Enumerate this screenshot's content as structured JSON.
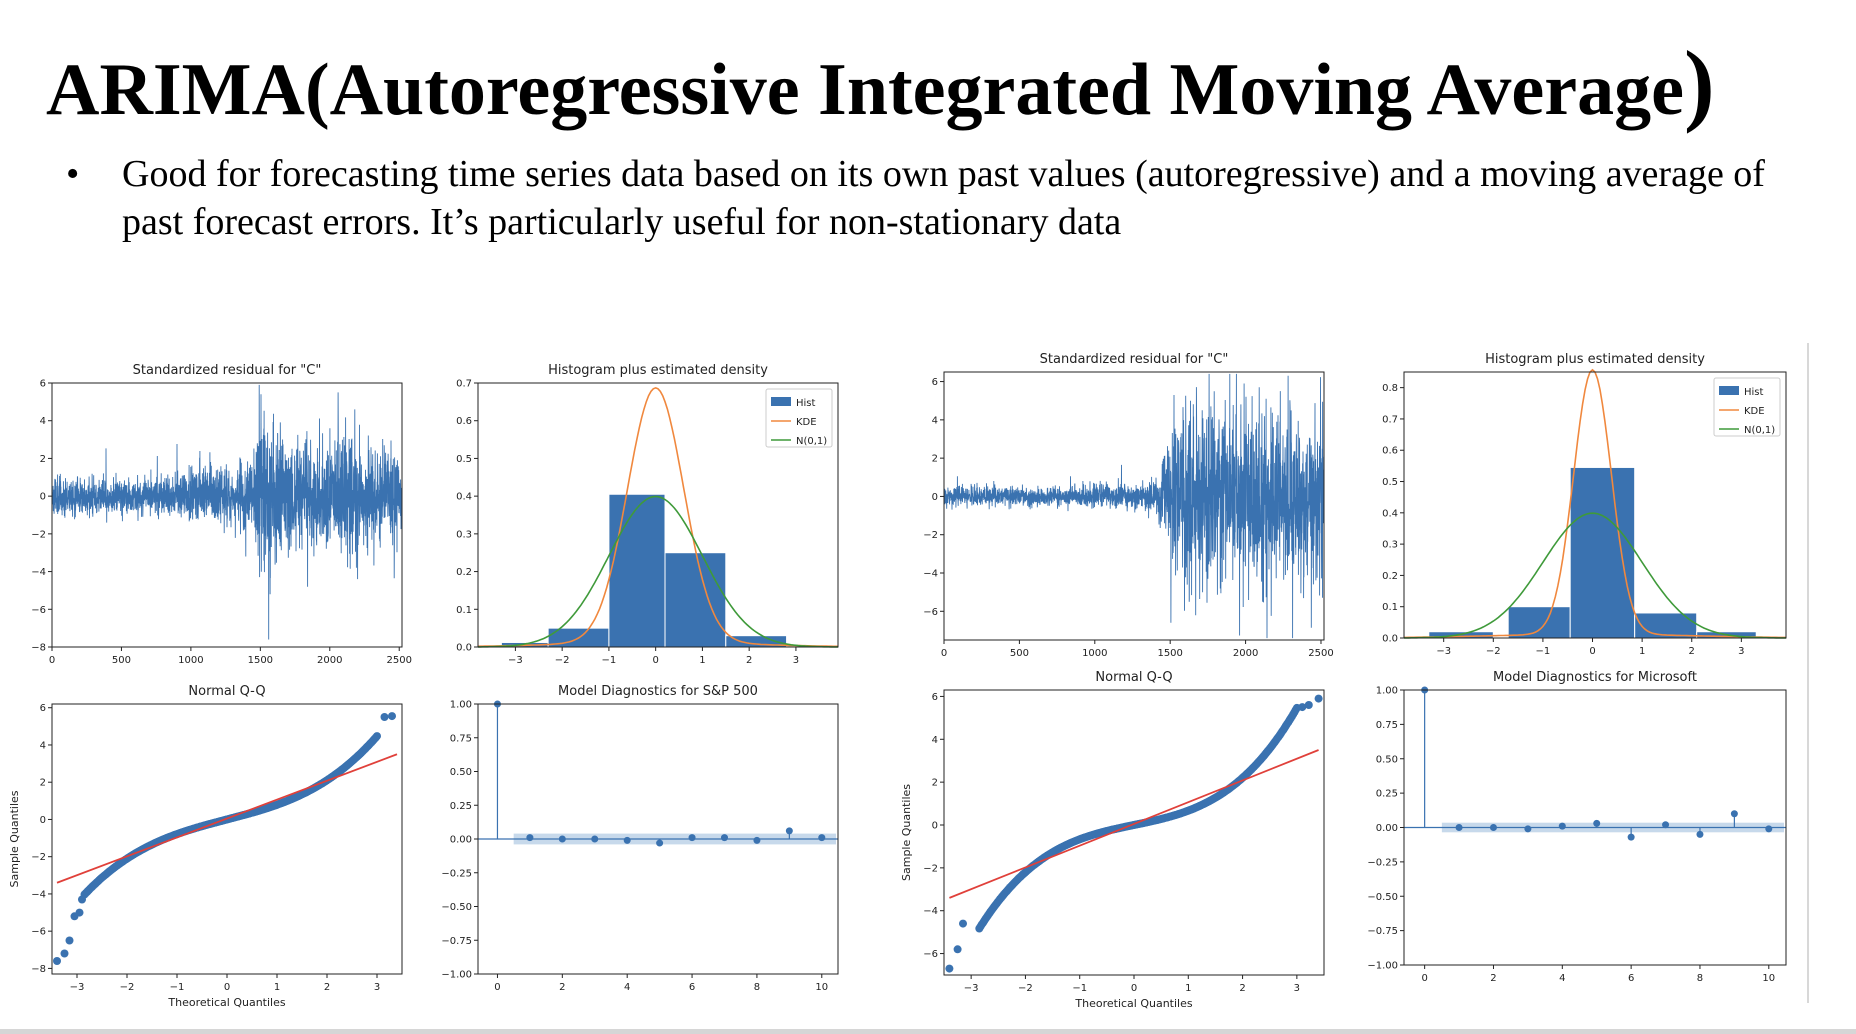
{
  "slide": {
    "title_main": "ARIMA(Autoregressive Integrated Moving Average",
    "title_paren": ")",
    "bullet_marker": "•",
    "bullet_text": "Good for forecasting time series data based on its own past values (autoregressive) and a moving average of past forecast errors. It’s particularly useful for non-stationary data"
  },
  "colors": {
    "blue": "#3a72b0",
    "orange": "#f0883e",
    "green": "#3f9a3a",
    "red": "#e0403a",
    "ci": "#b9cfe6"
  },
  "chart_data": [
    {
      "panel": "left",
      "residual": {
        "type": "line",
        "title": "Standardized residual for \"C\"",
        "xlim": [
          0,
          2520
        ],
        "ylim": [
          -8,
          6
        ],
        "xticks": [
          0,
          500,
          1000,
          1500,
          2000,
          2500
        ],
        "yticks": [
          6,
          4,
          2,
          0,
          -2,
          -4,
          -6,
          -8
        ],
        "n": 2516,
        "seed": 11,
        "amplitude_profile": [
          [
            0,
            0.5
          ],
          [
            600,
            0.45
          ],
          [
            1100,
            0.7
          ],
          [
            1450,
            0.9
          ],
          [
            1500,
            2.2
          ],
          [
            1650,
            1.4
          ],
          [
            1950,
            1.2
          ],
          [
            2100,
            1.6
          ],
          [
            2300,
            1.2
          ],
          [
            2516,
            1.1
          ]
        ],
        "spikes": [
          [
            1505,
            5.4
          ],
          [
            1560,
            -7.6
          ],
          [
            1570,
            -5.2
          ],
          [
            1395,
            -3.2
          ],
          [
            2060,
            5.5
          ],
          [
            2180,
            4.6
          ],
          [
            2200,
            -4.4
          ],
          [
            1840,
            -4.8
          ]
        ]
      },
      "histogram": {
        "type": "bar",
        "title": "Histogram plus estimated density",
        "xlim": [
          -3.8,
          3.9
        ],
        "ylim": [
          0,
          0.7
        ],
        "xticks": [
          -3,
          -2,
          -1,
          0,
          1,
          2,
          3
        ],
        "yticks": [
          0.0,
          0.1,
          0.2,
          0.3,
          0.4,
          0.5,
          0.6,
          0.7
        ],
        "bins": [
          [
            -3.3,
            -2.3,
            0.012
          ],
          [
            -2.3,
            -1.0,
            0.05
          ],
          [
            -1.0,
            0.2,
            0.405
          ],
          [
            0.2,
            1.5,
            0.25
          ],
          [
            1.5,
            2.8,
            0.03
          ]
        ],
        "kde_peak": 0.675,
        "kde_sigma": 0.6,
        "legend": [
          "Hist",
          "KDE",
          "N(0,1)"
        ]
      },
      "qq": {
        "type": "scatter",
        "title": "Normal Q-Q",
        "xlabel": "Theoretical Quantiles",
        "ylabel": "Sample Quantiles",
        "xlim": [
          -3.5,
          3.5
        ],
        "ylim": [
          -8.3,
          6.2
        ],
        "xticks": [
          -3,
          -2,
          -1,
          0,
          1,
          2,
          3
        ],
        "yticks": [
          6,
          4,
          2,
          0,
          -2,
          -4,
          -6,
          -8
        ],
        "line": {
          "x": [
            -3.4,
            3.4
          ],
          "y": [
            -3.4,
            3.5
          ]
        },
        "outliers": [
          [
            -3.4,
            -7.6
          ],
          [
            -3.25,
            -7.2
          ],
          [
            -3.15,
            -6.5
          ],
          [
            -3.05,
            -5.2
          ],
          [
            -2.95,
            -5.0
          ],
          [
            -2.9,
            -4.3
          ],
          [
            3.15,
            5.5
          ],
          [
            3.3,
            5.55
          ]
        ],
        "core_scale": 1.0,
        "core_cubic": 0.055
      },
      "acf": {
        "type": "scatter",
        "title": "Model Diagnostics for S&P 500",
        "xlim": [
          -0.6,
          10.5
        ],
        "ylim": [
          -1.0,
          1.0
        ],
        "xticks": [
          0,
          2,
          4,
          6,
          8,
          10
        ],
        "yticks": [
          1.0,
          0.75,
          0.5,
          0.25,
          0.0,
          -0.25,
          -0.5,
          -0.75,
          -1.0
        ],
        "lags": [
          0,
          1,
          2,
          3,
          4,
          5,
          6,
          7,
          8,
          9,
          10
        ],
        "values": [
          1.0,
          0.01,
          0.0,
          0.0,
          -0.01,
          -0.03,
          0.01,
          0.01,
          -0.01,
          0.06,
          0.01
        ],
        "ci": 0.04
      }
    },
    {
      "panel": "right",
      "residual": {
        "type": "line",
        "title": "Standardized residual for \"C\"",
        "xlim": [
          0,
          2520
        ],
        "ylim": [
          -7.5,
          6.5
        ],
        "xticks": [
          0,
          500,
          1000,
          1500,
          2000,
          2500
        ],
        "yticks": [
          6,
          4,
          2,
          0,
          -2,
          -4,
          -6
        ],
        "n": 2516,
        "seed": 29,
        "amplitude_profile": [
          [
            0,
            0.25
          ],
          [
            800,
            0.25
          ],
          [
            1400,
            0.4
          ],
          [
            1480,
            1.3
          ],
          [
            1560,
            2.6
          ],
          [
            1900,
            2.2
          ],
          [
            2200,
            2.3
          ],
          [
            2516,
            2.1
          ]
        ],
        "spikes": [
          [
            1505,
            -6.6
          ],
          [
            1525,
            5.3
          ],
          [
            1635,
            5.0
          ],
          [
            1990,
            5.9
          ],
          [
            2090,
            5.7
          ],
          [
            2230,
            5.5
          ],
          [
            1750,
            -4.3
          ],
          [
            2350,
            -4.1
          ]
        ]
      },
      "histogram": {
        "type": "bar",
        "title": "Histogram plus estimated density",
        "xlim": [
          -3.8,
          3.9
        ],
        "ylim": [
          0,
          0.85
        ],
        "xticks": [
          -3,
          -2,
          -1,
          0,
          1,
          2,
          3
        ],
        "yticks": [
          0.0,
          0.1,
          0.2,
          0.3,
          0.4,
          0.5,
          0.6,
          0.7,
          0.8
        ],
        "bins": [
          [
            -3.3,
            -2.0,
            0.02
          ],
          [
            -1.7,
            -0.45,
            0.1
          ],
          [
            -0.45,
            0.85,
            0.545
          ],
          [
            0.85,
            2.1,
            0.08
          ],
          [
            2.1,
            3.3,
            0.02
          ]
        ],
        "kde_peak": 0.845,
        "kde_sigma": 0.38,
        "legend": [
          "Hist",
          "KDE",
          "N(0,1)"
        ]
      },
      "qq": {
        "type": "scatter",
        "title": "Normal Q-Q",
        "xlabel": "Theoretical Quantiles",
        "ylabel": "Sample Quantiles",
        "xlim": [
          -3.5,
          3.5
        ],
        "ylim": [
          -7.0,
          6.3
        ],
        "xticks": [
          -3,
          -2,
          -1,
          0,
          1,
          2,
          3
        ],
        "yticks": [
          6,
          4,
          2,
          0,
          -2,
          -4,
          -6
        ],
        "line": {
          "x": [
            -3.4,
            3.4
          ],
          "y": [
            -3.4,
            3.5
          ]
        },
        "outliers": [
          [
            -3.4,
            -6.7
          ],
          [
            -3.25,
            -5.8
          ],
          [
            -3.15,
            -4.6
          ],
          [
            3.1,
            5.5
          ],
          [
            3.22,
            5.6
          ],
          [
            3.4,
            5.9
          ]
        ],
        "core_scale": 0.75,
        "core_cubic": 0.09
      },
      "acf": {
        "type": "scatter",
        "title": "Model Diagnostics for Microsoft",
        "xlim": [
          -0.6,
          10.5
        ],
        "ylim": [
          -1.0,
          1.0
        ],
        "xticks": [
          0,
          2,
          4,
          6,
          8,
          10
        ],
        "yticks": [
          1.0,
          0.75,
          0.5,
          0.25,
          0.0,
          -0.25,
          -0.5,
          -0.75,
          -1.0
        ],
        "lags": [
          0,
          1,
          2,
          3,
          4,
          5,
          6,
          7,
          8,
          9,
          10
        ],
        "values": [
          1.0,
          0.0,
          0.0,
          -0.01,
          0.01,
          0.03,
          -0.07,
          0.02,
          -0.05,
          0.1,
          -0.01
        ],
        "ci": 0.035
      }
    }
  ]
}
